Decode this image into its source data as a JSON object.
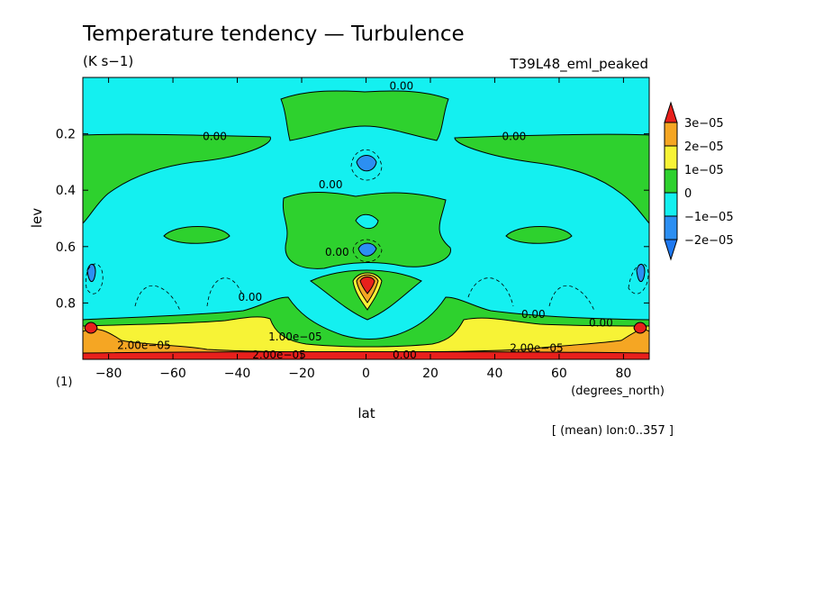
{
  "chart_data": {
    "type": "contour",
    "title": "Temperature tendency — Turbulence",
    "units": "(K s−1)",
    "experiment": "T39L48_eml_peaked",
    "xlabel": "lat",
    "x_units": "(degrees_north)",
    "ylabel": "lev",
    "y_units": "(1)",
    "averaging_note": "[ (mean) lon:0..357 ]",
    "xlim": [
      -88,
      88
    ],
    "ylim": [
      0.0,
      1.0
    ],
    "y_inverted": true,
    "x_ticks": [
      -80,
      -60,
      -40,
      -20,
      0,
      20,
      40,
      60,
      80
    ],
    "x_tick_labels": [
      "−80",
      "−60",
      "−40",
      "−20",
      "0",
      "20",
      "40",
      "60",
      "80"
    ],
    "y_ticks": [
      0.2,
      0.4,
      0.6,
      0.8
    ],
    "y_tick_labels": [
      "0.2",
      "0.4",
      "0.6",
      "0.8"
    ],
    "colorbar": {
      "levels": [
        "3e−05",
        "2e−05",
        "1e−05",
        "0",
        "−1e−05",
        "−2e−05"
      ],
      "colors": [
        "#e8201c",
        "#f5a623",
        "#f7f336",
        "#2ed12e",
        "#14f0f0",
        "#2c8ff2",
        "#1e78f0"
      ]
    },
    "contour_labels": [
      {
        "text": "0.00",
        "lat": 11,
        "lev": 0.03
      },
      {
        "text": "0.00",
        "lat": -47,
        "lev": 0.21
      },
      {
        "text": "0.00",
        "lat": 46,
        "lev": 0.21
      },
      {
        "text": "0.00",
        "lat": -11,
        "lev": 0.38
      },
      {
        "text": "0.00",
        "lat": -9,
        "lev": 0.62
      },
      {
        "text": "0.00",
        "lat": -36,
        "lev": 0.78
      },
      {
        "text": "0.00",
        "lat": 52,
        "lev": 0.84
      },
      {
        "text": "0.00",
        "lat": 73,
        "lev": 0.87
      },
      {
        "text": "1.00e−05",
        "lat": -22,
        "lev": 0.92
      },
      {
        "text": "2.00e−05",
        "lat": -69,
        "lev": 0.95
      },
      {
        "text": "2.00e−05",
        "lat": 53,
        "lev": 0.96
      },
      {
        "text": "2.00e−05",
        "lat": -27,
        "lev": 0.99
      },
      {
        "text": "0.00",
        "lat": 12,
        "lev": 1.0
      }
    ]
  }
}
